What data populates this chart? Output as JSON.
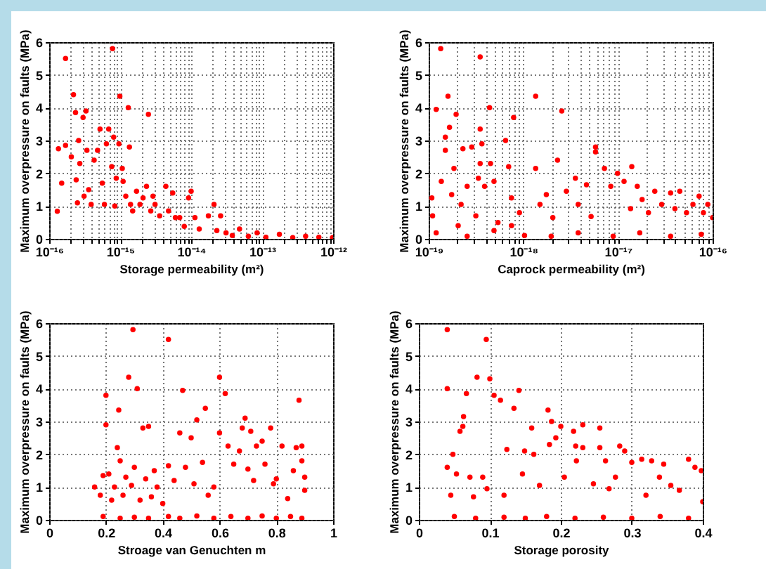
{
  "chart_data": [
    {
      "type": "scatter",
      "xlabel": "Storage permeability (m²)",
      "ylabel": "Maximum overpressure on faults (MPa)",
      "log": "x",
      "grid": true,
      "marker": "circle",
      "xlim": [
        1e-16,
        1e-12
      ],
      "ylim": [
        0,
        6
      ],
      "yticks": [
        0,
        1,
        2,
        3,
        4,
        5,
        6
      ],
      "xticks": [
        {
          "value": 1e-16,
          "label": "10⁻¹⁶"
        },
        {
          "value": 2e-16,
          "label": null
        },
        {
          "value": 3e-16,
          "label": null
        },
        {
          "value": 4e-16,
          "label": null
        },
        {
          "value": 5e-16,
          "label": null
        },
        {
          "value": 6e-16,
          "label": null
        },
        {
          "value": 7e-16,
          "label": null
        },
        {
          "value": 8e-16,
          "label": null
        },
        {
          "value": 9e-16,
          "label": null
        },
        {
          "value": 1e-15,
          "label": "10⁻¹⁵"
        },
        {
          "value": 2e-15,
          "label": null
        },
        {
          "value": 3e-15,
          "label": null
        },
        {
          "value": 4e-15,
          "label": null
        },
        {
          "value": 5e-15,
          "label": null
        },
        {
          "value": 6e-15,
          "label": null
        },
        {
          "value": 7e-15,
          "label": null
        },
        {
          "value": 8e-15,
          "label": null
        },
        {
          "value": 9e-15,
          "label": null
        },
        {
          "value": 1e-14,
          "label": "10⁻¹⁴"
        },
        {
          "value": 2e-14,
          "label": null
        },
        {
          "value": 3e-14,
          "label": null
        },
        {
          "value": 4e-14,
          "label": null
        },
        {
          "value": 5e-14,
          "label": null
        },
        {
          "value": 6e-14,
          "label": null
        },
        {
          "value": 7e-14,
          "label": null
        },
        {
          "value": 8e-14,
          "label": null
        },
        {
          "value": 9e-14,
          "label": null
        },
        {
          "value": 1e-13,
          "label": "10⁻¹³"
        },
        {
          "value": 2e-13,
          "label": null
        },
        {
          "value": 3e-13,
          "label": null
        },
        {
          "value": 4e-13,
          "label": null
        },
        {
          "value": 5e-13,
          "label": null
        },
        {
          "value": 6e-13,
          "label": null
        },
        {
          "value": 7e-13,
          "label": null
        },
        {
          "value": 8e-13,
          "label": null
        },
        {
          "value": 9e-13,
          "label": null
        },
        {
          "value": 1e-12,
          "label": "10⁻¹²"
        }
      ],
      "series": [
        {
          "color": "#ff0000",
          "x": [
            1.3e-16,
            1.35e-16,
            1.5e-16,
            1.7e-16,
            1.7e-16,
            2.05e-16,
            2.2e-16,
            2.35e-16,
            2.6e-16,
            2.4e-16,
            2.5e-16,
            2.7e-16,
            3e-16,
            3.3e-16,
            3.4e-16,
            3.1e-16,
            3.6e-16,
            3.9e-16,
            4.3e-16,
            4.8e-16,
            5.2e-16,
            5.6e-16,
            6e-16,
            6.4e-16,
            6.9e-16,
            7.8e-16,
            8.1e-16,
            7.6e-16,
            8.4e-16,
            8.8e-16,
            9.6e-16,
            9.9e-16,
            1.07e-15,
            1.1e-15,
            1.2e-15,
            1.3e-15,
            1.35e-15,
            1.4e-15,
            1.5e-15,
            1.7e-15,
            1.9e-15,
            2.1e-15,
            2.35e-15,
            2.5e-15,
            2.7e-15,
            2.9e-15,
            3.1e-15,
            3.6e-15,
            4.4e-15,
            4.8e-15,
            5.5e-15,
            6e-15,
            6.9e-15,
            8e-15,
            9.2e-15,
            1e-14,
            1.13e-14,
            1.3e-14,
            1.75e-14,
            2.1e-14,
            2.3e-14,
            2.6e-14,
            3.1e-14,
            3.8e-14,
            4.8e-14,
            6.4e-14,
            8.5e-14,
            1.13e-13,
            1.75e-13,
            2.7e-13,
            4.1e-13,
            6.3e-13,
            9.8e-13
          ],
          "values": [
            0.84,
            2.75,
            1.7,
            5.5,
            2.85,
            2.5,
            4.4,
            3.85,
            3.0,
            1.8,
            1.1,
            2.3,
            3.7,
            3.9,
            2.7,
            1.3,
            1.5,
            1.05,
            2.4,
            2.7,
            3.35,
            1.7,
            1.05,
            2.9,
            3.35,
            5.8,
            3.1,
            2.2,
            1.0,
            1.85,
            2.9,
            4.35,
            2.15,
            1.75,
            1.3,
            4.0,
            2.8,
            1.05,
            0.85,
            1.45,
            1.05,
            1.25,
            1.6,
            3.8,
            0.85,
            1.3,
            1.05,
            0.7,
            1.6,
            0.85,
            1.4,
            0.65,
            0.65,
            0.38,
            1.25,
            1.45,
            0.65,
            0.3,
            0.7,
            1.05,
            0.25,
            0.7,
            0.18,
            0.1,
            0.3,
            0.08,
            0.18,
            0.05,
            0.14,
            0.04,
            0.08,
            0.05,
            0.04
          ]
        }
      ]
    },
    {
      "type": "scatter",
      "xlabel": "Caprock permeability (m²)",
      "ylabel": "Maximum overpressure on faults (MPa)",
      "log": "x",
      "grid": true,
      "marker": "circle",
      "xlim": [
        1e-19,
        1e-16
      ],
      "ylim": [
        0,
        6
      ],
      "yticks": [
        0,
        1,
        2,
        3,
        4,
        5,
        6
      ],
      "xticks": [
        {
          "value": 1e-19,
          "label": "10⁻¹⁹"
        },
        {
          "value": 2e-19,
          "label": null
        },
        {
          "value": 3e-19,
          "label": null
        },
        {
          "value": 4e-19,
          "label": null
        },
        {
          "value": 5e-19,
          "label": null
        },
        {
          "value": 6e-19,
          "label": null
        },
        {
          "value": 7e-19,
          "label": null
        },
        {
          "value": 8e-19,
          "label": null
        },
        {
          "value": 9e-19,
          "label": null
        },
        {
          "value": 1e-18,
          "label": "10⁻¹⁸"
        },
        {
          "value": 2e-18,
          "label": null
        },
        {
          "value": 3e-18,
          "label": null
        },
        {
          "value": 4e-18,
          "label": null
        },
        {
          "value": 5e-18,
          "label": null
        },
        {
          "value": 6e-18,
          "label": null
        },
        {
          "value": 7e-18,
          "label": null
        },
        {
          "value": 8e-18,
          "label": null
        },
        {
          "value": 9e-18,
          "label": null
        },
        {
          "value": 1e-17,
          "label": "10⁻¹⁷"
        },
        {
          "value": 2e-17,
          "label": null
        },
        {
          "value": 3e-17,
          "label": null
        },
        {
          "value": 4e-17,
          "label": null
        },
        {
          "value": 5e-17,
          "label": null
        },
        {
          "value": 6e-17,
          "label": null
        },
        {
          "value": 7e-17,
          "label": null
        },
        {
          "value": 8e-17,
          "label": null
        },
        {
          "value": 9e-17,
          "label": null
        },
        {
          "value": 1e-16,
          "label": "10⁻¹⁶"
        }
      ],
      "series": [
        {
          "color": "#ff0000",
          "x": [
            1.08e-19,
            1.1e-19,
            1.2e-19,
            1.34e-19,
            1.36e-19,
            1.5e-19,
            1.5e-19,
            1.6e-19,
            1.66e-19,
            1.75e-19,
            1.85e-19,
            1.95e-19,
            2.05e-19,
            2.2e-19,
            2.3e-19,
            2.55e-19,
            2.85e-19,
            3.15e-19,
            3.35e-19,
            3.5e-19,
            3.5e-19,
            3.65e-19,
            3.5e-19,
            3.9e-19,
            4.4e-19,
            4.5e-19,
            4.9e-19,
            5.4e-19,
            6.5e-19,
            7e-19,
            7.9e-19,
            7.5e-19,
            7.5e-19,
            9.1e-19,
            1.35e-18,
            1.35e-18,
            1.5e-18,
            1.75e-18,
            2.05e-18,
            2.3e-18,
            2.55e-18,
            2.85e-18,
            3.55e-18,
            3.8e-18,
            4.65e-18,
            5.2e-18,
            5.8e-18,
            5.8e-18,
            7.2e-18,
            8.4e-18,
            9.9e-18,
            1.16e-17,
            1.36e-17,
            1.4e-17,
            1.6e-17,
            1.8e-17,
            2.1e-17,
            2.45e-17,
            2.9e-17,
            3.6e-17,
            4e-17,
            4.5e-17,
            5.3e-17,
            6.2e-17,
            7.2e-17,
            8e-17,
            8.9e-17,
            1e-16,
            1.2e-19,
            2.55e-19,
            4.9e-19,
            1.03e-18,
            1.97e-18,
            3.8e-18,
            8.9e-18,
            1.7e-17,
            3.6e-17,
            7.6e-17
          ],
          "values": [
            1.25,
            0.7,
            3.95,
            5.8,
            1.75,
            3.1,
            2.7,
            4.35,
            3.4,
            1.35,
            2.15,
            3.8,
            0.4,
            1.05,
            2.75,
            1.6,
            2.8,
            0.7,
            1.85,
            5.55,
            3.35,
            2.9,
            2.3,
            1.6,
            4.0,
            2.3,
            1.75,
            0.5,
            3.0,
            2.2,
            3.7,
            1.25,
            0.4,
            0.8,
            4.35,
            2.15,
            1.05,
            1.35,
            0.65,
            2.4,
            3.9,
            1.45,
            1.85,
            1.05,
            1.65,
            0.68,
            2.8,
            2.65,
            2.15,
            1.6,
            2.0,
            1.75,
            0.92,
            2.2,
            1.6,
            1.2,
            0.8,
            1.45,
            1.05,
            1.4,
            0.92,
            1.45,
            0.8,
            1.05,
            1.3,
            0.8,
            1.05,
            0.65,
            0.18,
            0.08,
            0.25,
            0.1,
            0.08,
            0.18,
            0.08,
            0.18,
            0.08,
            0.14
          ]
        }
      ]
    },
    {
      "type": "scatter",
      "xlabel": "Stroage van Genuchten m",
      "ylabel": "Maximum overpressure on faults (MPa)",
      "grid": true,
      "marker": "circle",
      "xlim": [
        0,
        1
      ],
      "ylim": [
        0,
        6
      ],
      "xticks": [
        0,
        0.2,
        0.4,
        0.6,
        0.8,
        1
      ],
      "yticks": [
        0,
        1,
        2,
        3,
        4,
        5,
        6
      ],
      "series": [
        {
          "color": "#ff0000",
          "x": [
            0.16,
            0.18,
            0.19,
            0.2,
            0.2,
            0.21,
            0.22,
            0.23,
            0.24,
            0.245,
            0.25,
            0.26,
            0.27,
            0.28,
            0.29,
            0.295,
            0.3,
            0.31,
            0.32,
            0.33,
            0.34,
            0.35,
            0.36,
            0.37,
            0.38,
            0.4,
            0.42,
            0.42,
            0.44,
            0.46,
            0.47,
            0.48,
            0.5,
            0.51,
            0.52,
            0.54,
            0.55,
            0.56,
            0.58,
            0.6,
            0.6,
            0.62,
            0.63,
            0.65,
            0.67,
            0.68,
            0.69,
            0.7,
            0.71,
            0.72,
            0.73,
            0.75,
            0.76,
            0.78,
            0.79,
            0.8,
            0.82,
            0.84,
            0.86,
            0.87,
            0.88,
            0.89,
            0.9,
            0.9,
            0.89,
            0.19,
            0.25,
            0.3,
            0.35,
            0.42,
            0.46,
            0.52,
            0.58,
            0.64,
            0.7,
            0.75,
            0.8,
            0.85,
            0.89
          ],
          "values": [
            1.0,
            0.75,
            1.35,
            2.9,
            3.8,
            1.4,
            0.6,
            1.0,
            2.2,
            3.35,
            1.8,
            0.75,
            1.3,
            4.35,
            1.05,
            5.8,
            1.6,
            4.0,
            0.6,
            2.8,
            1.25,
            2.85,
            0.7,
            1.5,
            1.0,
            0.5,
            5.5,
            1.65,
            1.2,
            2.65,
            3.95,
            1.6,
            2.5,
            1.1,
            3.05,
            1.75,
            3.4,
            0.75,
            1.0,
            2.65,
            4.35,
            3.85,
            2.25,
            1.7,
            2.1,
            2.8,
            3.1,
            1.55,
            2.7,
            1.2,
            2.25,
            2.4,
            1.7,
            2.8,
            1.1,
            1.25,
            2.25,
            0.65,
            1.5,
            2.2,
            3.65,
            2.25,
            1.3,
            0.9,
            1.8,
            0.1,
            0.05,
            0.08,
            0.05,
            0.1,
            0.05,
            0.12,
            0.05,
            0.1,
            0.05,
            0.12,
            0.05,
            0.1,
            0.05
          ]
        }
      ]
    },
    {
      "type": "scatter",
      "xlabel": "Storage porosity",
      "ylabel": "Maximum overpressure on faults (MPa)",
      "grid": true,
      "marker": "circle",
      "xlim": [
        0,
        0.4
      ],
      "ylim": [
        0,
        6
      ],
      "xticks": [
        0,
        0.1,
        0.2,
        0.3,
        0.4
      ],
      "yticks": [
        0,
        1,
        2,
        3,
        4,
        5,
        6
      ],
      "series": [
        {
          "color": "#ff0000",
          "x": [
            0.04,
            0.04,
            0.04,
            0.045,
            0.048,
            0.053,
            0.058,
            0.062,
            0.063,
            0.067,
            0.072,
            0.077,
            0.082,
            0.09,
            0.095,
            0.096,
            0.1,
            0.106,
            0.115,
            0.12,
            0.124,
            0.134,
            0.141,
            0.146,
            0.149,
            0.159,
            0.162,
            0.17,
            0.182,
            0.184,
            0.187,
            0.193,
            0.2,
            0.205,
            0.218,
            0.221,
            0.222,
            0.231,
            0.231,
            0.246,
            0.255,
            0.255,
            0.263,
            0.268,
            0.277,
            0.283,
            0.29,
            0.3,
            0.314,
            0.32,
            0.328,
            0.339,
            0.345,
            0.355,
            0.367,
            0.38,
            0.389,
            0.398,
            0.4,
            0.05,
            0.08,
            0.12,
            0.15,
            0.18,
            0.22,
            0.26,
            0.3,
            0.34,
            0.38
          ],
          "values": [
            5.8,
            4.0,
            1.6,
            0.75,
            2.0,
            1.4,
            2.7,
            2.85,
            3.15,
            3.85,
            1.3,
            0.7,
            4.35,
            1.3,
            5.5,
            0.95,
            4.3,
            3.8,
            3.65,
            0.75,
            2.15,
            3.4,
            3.95,
            1.4,
            2.1,
            2.8,
            2.0,
            1.05,
            3.35,
            2.3,
            3.0,
            2.5,
            2.85,
            1.3,
            2.7,
            2.25,
            1.8,
            2.9,
            2.2,
            1.1,
            2.8,
            2.2,
            1.8,
            0.95,
            1.3,
            2.25,
            2.1,
            1.75,
            1.85,
            0.75,
            1.8,
            1.3,
            1.7,
            1.05,
            0.9,
            1.85,
            1.6,
            1.5,
            0.55,
            0.1,
            0.05,
            0.08,
            0.05,
            0.1,
            0.05,
            0.08,
            0.05,
            0.1,
            0.05
          ]
        }
      ]
    }
  ]
}
